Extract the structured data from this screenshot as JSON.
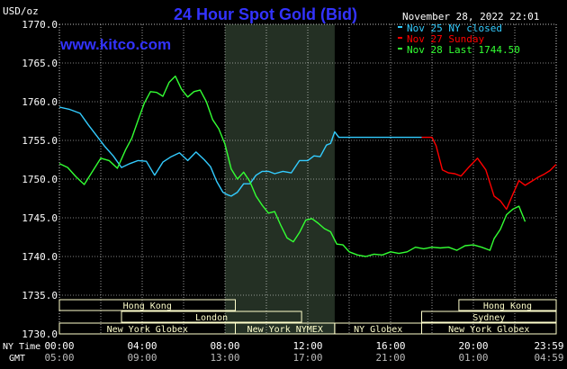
{
  "header": {
    "unit": "USD/oz",
    "title": "24 Hour Spot Gold (Bid)",
    "timestamp": "November 28, 2022 22:01",
    "website": "www.kitco.com"
  },
  "colors": {
    "background": "#000000",
    "grid": "#ffffff",
    "title": "#3333ff",
    "website": "#3333ff",
    "shade": "#243024",
    "session_box": "#ffffcc",
    "series_nov25": "#33ccff",
    "series_nov27": "#ff0000",
    "series_nov28": "#33ff33"
  },
  "legend": [
    {
      "label": "Nov 25 NY closed",
      "color": "#33ccff"
    },
    {
      "label": "Nov 27 Sunday",
      "color": "#ff0000"
    },
    {
      "label": "Nov 28 Last 1744.50",
      "color": "#33ff33"
    }
  ],
  "sessions": [
    {
      "name": "Hong Kong",
      "start": 0,
      "end": 8.5,
      "row": 0
    },
    {
      "name": "London",
      "start": 3,
      "end": 11.7,
      "row": 1
    },
    {
      "name": "New York Globex",
      "start": 0,
      "end": 8.5,
      "row": 2
    },
    {
      "name": "New York NYMEX",
      "start": 8.5,
      "end": 13.3,
      "row": 2
    },
    {
      "name": "NY Globex",
      "start": 13.3,
      "end": 17.5,
      "row": 2
    },
    {
      "name": "Hong Kong",
      "start": 19.3,
      "end": 24,
      "row": 0
    },
    {
      "name": "Sydney",
      "start": 17.5,
      "end": 24,
      "row": 1
    },
    {
      "name": "New York Globex",
      "start": 17.5,
      "end": 24,
      "row": 2
    }
  ],
  "axis_labels": {
    "ny_time": "NY Time",
    "gmt": "GMT"
  },
  "chart_data": {
    "type": "line",
    "title": "24 Hour Spot Gold (Bid)",
    "ylabel": "USD/oz",
    "xlabel": "",
    "ylim": [
      1730,
      1770
    ],
    "xlim": [
      0,
      24
    ],
    "yticks": [
      "1770.0",
      "1765.0",
      "1760.0",
      "1755.0",
      "1750.0",
      "1745.0",
      "1740.0",
      "1735.0",
      "1730.0"
    ],
    "xticks_ny": [
      "00:00",
      "04:00",
      "08:00",
      "12:00",
      "16:00",
      "20:00",
      "23:59"
    ],
    "xticks_gmt": [
      "05:00",
      "09:00",
      "13:00",
      "17:00",
      "21:00",
      "01:00",
      "04:59"
    ],
    "shaded_range": [
      8,
      13.3
    ],
    "grid": true,
    "legend_position": "top-right",
    "series": [
      {
        "name": "Nov 25 NY closed",
        "color": "#33ccff",
        "x": [
          0,
          0.5,
          1,
          1.4,
          1.8,
          2.2,
          2.6,
          3,
          3.4,
          3.8,
          4.2,
          4.6,
          5,
          5.4,
          5.8,
          6.2,
          6.6,
          7,
          7.3,
          7.6,
          7.9,
          8.1,
          8.3,
          8.6,
          8.9,
          9.2,
          9.5,
          9.8,
          10.1,
          10.4,
          10.8,
          11.2,
          11.6,
          12,
          12.3,
          12.6,
          12.9,
          13.1,
          13.3,
          13.5,
          14,
          15,
          16,
          17,
          17.5
        ],
        "y": [
          1759.3,
          1759,
          1758.5,
          1757,
          1755.6,
          1754.2,
          1753,
          1751.5,
          1752,
          1752.4,
          1752.3,
          1750.5,
          1752.2,
          1752.9,
          1753.4,
          1752.4,
          1753.5,
          1752.5,
          1751.6,
          1749.7,
          1748.3,
          1748,
          1747.8,
          1748.3,
          1749.4,
          1749.4,
          1750.5,
          1751,
          1751,
          1750.7,
          1751,
          1750.8,
          1752.4,
          1752.4,
          1753,
          1752.9,
          1754.4,
          1754.6,
          1756.1,
          1755.4,
          1755.4,
          1755.4,
          1755.4,
          1755.4,
          1755.4
        ]
      },
      {
        "name": "Nov 27 Sunday",
        "color": "#ff0000",
        "x": [
          17.5,
          18,
          18.2,
          18.5,
          18.8,
          19.1,
          19.4,
          19.8,
          20.2,
          20.6,
          21,
          21.3,
          21.6,
          21.9,
          22.2,
          22.5,
          22.8,
          23.1,
          23.4,
          23.7,
          23.99
        ],
        "y": [
          1755.4,
          1755.4,
          1754.3,
          1751.2,
          1750.8,
          1750.7,
          1750.4,
          1751.6,
          1752.7,
          1751.2,
          1747.8,
          1747.2,
          1746.1,
          1748,
          1749.8,
          1749.2,
          1749.7,
          1750.2,
          1750.6,
          1751.1,
          1751.9
        ]
      },
      {
        "name": "Nov 28 Last 1744.50",
        "color": "#33ff33",
        "x": [
          0,
          0.4,
          0.8,
          1.2,
          1.6,
          2,
          2.4,
          2.8,
          3.2,
          3.5,
          3.8,
          4.1,
          4.4,
          4.7,
          5,
          5.3,
          5.6,
          5.9,
          6.2,
          6.5,
          6.8,
          7.1,
          7.4,
          7.7,
          8,
          8.3,
          8.6,
          8.9,
          9.2,
          9.5,
          9.8,
          10.1,
          10.4,
          10.7,
          11,
          11.3,
          11.6,
          11.9,
          12.2,
          12.5,
          12.8,
          13.1,
          13.4,
          13.7,
          14,
          14.4,
          14.8,
          15.2,
          15.6,
          16,
          16.4,
          16.8,
          17.2,
          17.6,
          18,
          18.4,
          18.8,
          19.2,
          19.6,
          20,
          20.4,
          20.8,
          21,
          21.3,
          21.6,
          21.9,
          22.2,
          22.5
        ],
        "y": [
          1752,
          1751.5,
          1750.3,
          1749.3,
          1751,
          1752.7,
          1752.4,
          1751.4,
          1753.8,
          1755.3,
          1757.6,
          1759.8,
          1761.3,
          1761.2,
          1760.7,
          1762.5,
          1763.3,
          1761.6,
          1760.6,
          1761.3,
          1761.5,
          1760,
          1757.7,
          1756.5,
          1754.5,
          1751.3,
          1750,
          1750.9,
          1749.7,
          1747.8,
          1746.6,
          1745.6,
          1745.8,
          1744,
          1742.4,
          1741.9,
          1743.1,
          1744.7,
          1744.9,
          1744.3,
          1743.6,
          1743.2,
          1741.6,
          1741.5,
          1740.6,
          1740.2,
          1740,
          1740.3,
          1740.2,
          1740.6,
          1740.4,
          1740.6,
          1741.2,
          1741,
          1741.2,
          1741.1,
          1741.2,
          1740.8,
          1741.4,
          1741.5,
          1741.2,
          1740.8,
          1742.3,
          1743.5,
          1745.4,
          1746.1,
          1746.5,
          1744.5
        ]
      }
    ]
  }
}
